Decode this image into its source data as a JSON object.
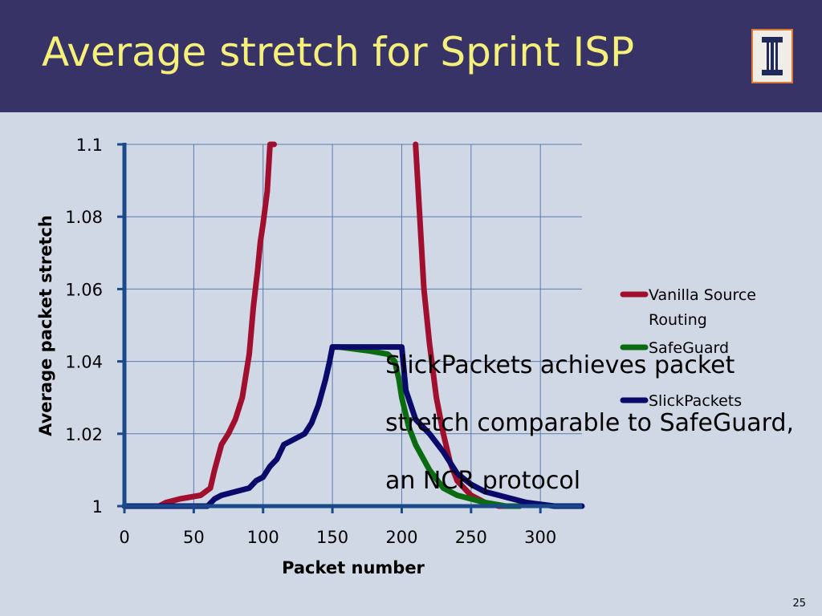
{
  "slide": {
    "title": "Average stretch for Sprint ISP",
    "overlay_text": "SlickPackets achieves packet stretch comparable to SafeGuard, an NCR protocol",
    "number": "25",
    "colors": {
      "header_bg": "#383366",
      "title": "#f5f07a",
      "body_bg": "#d0d8e6",
      "logo_bg": "#e07a30"
    }
  },
  "chart_data": {
    "type": "line",
    "title": "",
    "xlabel": "Packet number",
    "ylabel": "Average packet stretch",
    "xlim": [
      0,
      330
    ],
    "ylim": [
      1,
      1.1
    ],
    "xticks": [
      "0",
      "50",
      "100",
      "150",
      "200",
      "250",
      "300"
    ],
    "yticks": [
      "1",
      "1.02",
      "1.04",
      "1.06",
      "1.08",
      "1.1"
    ],
    "grid": true,
    "legend": "right",
    "series": [
      {
        "name": "Vanilla Source Routing",
        "color": "#a0102e",
        "x": [
          0,
          25,
          30,
          40,
          55,
          62,
          65,
          70,
          75,
          80,
          85,
          90,
          93,
          96,
          98,
          100,
          103,
          105,
          107,
          108,
          150,
          200,
          210,
          213,
          216,
          220,
          225,
          230,
          235,
          240,
          250,
          260,
          270,
          285
        ],
        "y": [
          1,
          1,
          1.001,
          1.002,
          1.003,
          1.005,
          1.01,
          1.017,
          1.02,
          1.024,
          1.03,
          1.042,
          1.055,
          1.065,
          1.073,
          1.078,
          1.087,
          1.1,
          1.1,
          1.1,
          null,
          null,
          1.1,
          1.08,
          1.06,
          1.045,
          1.03,
          1.02,
          1.012,
          1.007,
          1.003,
          1.001,
          1,
          1
        ]
      },
      {
        "name": "SafeGuard",
        "color": "#0a6b10",
        "x": [
          150,
          155,
          175,
          190,
          195,
          198,
          200,
          205,
          210,
          220,
          230,
          240,
          250,
          260,
          275,
          285
        ],
        "y": [
          1.044,
          1.044,
          1.043,
          1.042,
          1.04,
          1.035,
          1.03,
          1.022,
          1.017,
          1.01,
          1.005,
          1.003,
          1.002,
          1.001,
          1,
          1
        ]
      },
      {
        "name": "SlickPackets",
        "color": "#0a0a6a",
        "x": [
          0,
          60,
          65,
          70,
          80,
          90,
          95,
          100,
          105,
          110,
          115,
          120,
          130,
          135,
          140,
          145,
          148,
          150,
          151,
          200,
          203,
          210,
          220,
          230,
          240,
          250,
          260,
          270,
          280,
          290,
          310,
          330
        ],
        "y": [
          1,
          1,
          1.002,
          1.003,
          1.004,
          1.005,
          1.007,
          1.008,
          1.011,
          1.013,
          1.017,
          1.018,
          1.02,
          1.023,
          1.028,
          1.035,
          1.04,
          1.044,
          1.044,
          1.044,
          1.032,
          1.024,
          1.02,
          1.015,
          1.009,
          1.006,
          1.004,
          1.003,
          1.002,
          1.001,
          1,
          1
        ]
      }
    ]
  }
}
